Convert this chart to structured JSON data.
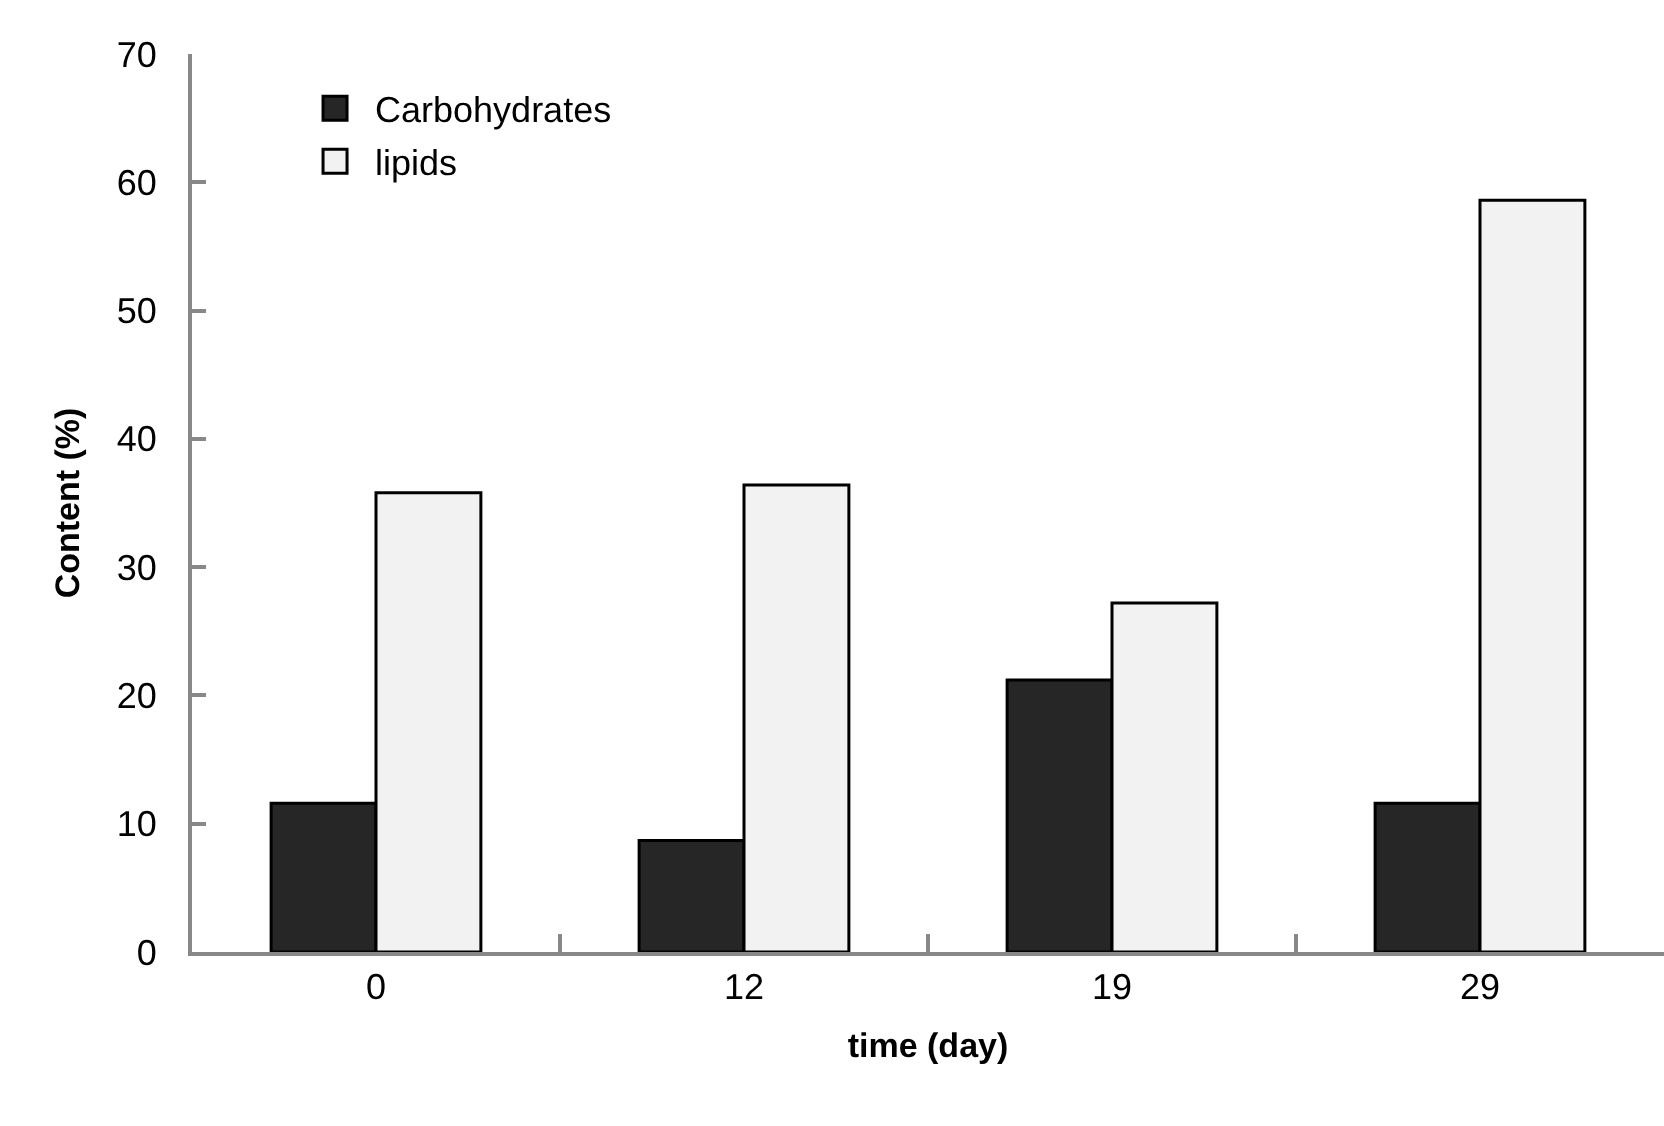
{
  "chart_data": {
    "type": "bar",
    "xlabel": "time (day)",
    "ylabel": "Content (%)",
    "categories": [
      "0",
      "12",
      "19",
      "29"
    ],
    "series": [
      {
        "name": "Carbohydrates",
        "color": "#262626",
        "values": [
          11.6,
          8.7,
          21.2,
          11.6
        ]
      },
      {
        "name": "lipids",
        "color": "#f2f2f2",
        "values": [
          35.8,
          36.4,
          27.2,
          58.6
        ]
      }
    ],
    "ylim": [
      0,
      70
    ],
    "yticks": [
      0,
      10,
      20,
      30,
      40,
      50,
      60,
      70
    ],
    "grid": false,
    "legend": "top left"
  }
}
